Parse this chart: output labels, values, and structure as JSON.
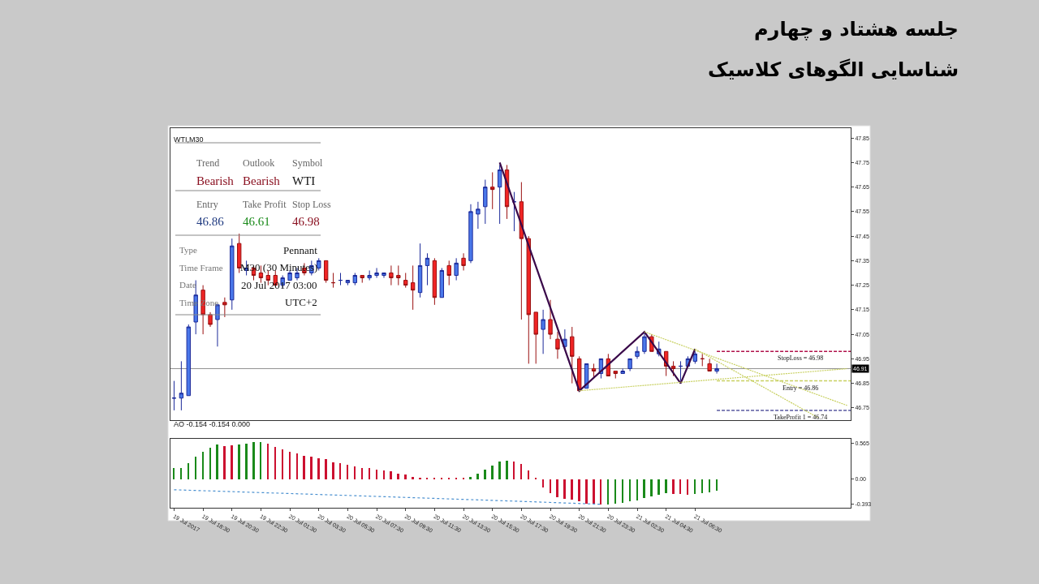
{
  "chart_data": [
    {
      "type": "candlestick",
      "title": "جلسه هشتاد و چهارم",
      "subtitle": "شناسایی الگوهای کلاسیک",
      "annotations": [
        "WTI,M30",
        "Trend",
        "Outlook",
        "Symbol",
        "Bearish",
        "Bearish",
        "WTI",
        "Entry",
        "Take Profit",
        "Stop Loss",
        "46.86",
        "46.61",
        "46.98",
        "Type",
        "Pennant",
        "Time Frame",
        "M30 (30 Minutes)",
        "Date",
        "20 Jul 2017 03:00",
        "Time Zone",
        "UTC+2"
      ],
      "ohlc": [
        [
          46.79,
          46.86,
          46.74,
          46.79
        ],
        [
          46.79,
          46.94,
          46.74,
          46.81
        ],
        [
          46.8,
          47.09,
          46.8,
          47.08
        ],
        [
          47.1,
          47.27,
          47.05,
          47.21
        ],
        [
          47.23,
          47.25,
          47.05,
          47.13
        ],
        [
          47.13,
          47.14,
          47.08,
          47.09
        ],
        [
          47.11,
          47.17,
          47.0,
          47.17
        ],
        [
          47.18,
          47.2,
          47.12,
          47.17
        ],
        [
          47.19,
          47.44,
          47.15,
          47.41
        ],
        [
          47.42,
          47.46,
          47.3,
          47.32
        ],
        [
          47.31,
          47.35,
          47.29,
          47.32
        ],
        [
          47.32,
          47.33,
          47.27,
          47.29
        ],
        [
          47.3,
          47.33,
          47.26,
          47.28
        ],
        [
          47.29,
          47.31,
          47.25,
          47.27
        ],
        [
          47.29,
          47.31,
          47.25,
          47.25
        ],
        [
          47.25,
          47.29,
          47.24,
          47.28
        ],
        [
          47.27,
          47.31,
          47.27,
          47.3
        ],
        [
          47.28,
          47.32,
          47.27,
          47.3
        ],
        [
          47.32,
          47.34,
          47.29,
          47.3
        ],
        [
          47.3,
          47.35,
          47.29,
          47.33
        ],
        [
          47.32,
          47.36,
          47.31,
          47.35
        ],
        [
          47.35,
          47.35,
          47.26,
          47.27
        ],
        [
          47.26,
          47.3,
          47.24,
          47.26
        ],
        [
          47.27,
          47.3,
          47.25,
          47.27
        ],
        [
          47.26,
          47.27,
          47.25,
          47.27
        ],
        [
          47.26,
          47.3,
          47.25,
          47.29
        ],
        [
          47.29,
          47.29,
          47.26,
          47.28
        ],
        [
          47.28,
          47.31,
          47.27,
          47.29
        ],
        [
          47.29,
          47.32,
          47.28,
          47.3
        ],
        [
          47.29,
          47.3,
          47.28,
          47.3
        ],
        [
          47.3,
          47.33,
          47.25,
          47.28
        ],
        [
          47.29,
          47.33,
          47.25,
          47.28
        ],
        [
          47.27,
          47.3,
          47.24,
          47.25
        ],
        [
          47.26,
          47.33,
          47.15,
          47.23
        ],
        [
          47.22,
          47.42,
          47.2,
          47.33
        ],
        [
          47.33,
          47.38,
          47.25,
          47.36
        ],
        [
          47.35,
          47.36,
          47.17,
          47.2
        ],
        [
          47.2,
          47.32,
          47.2,
          47.31
        ],
        [
          47.33,
          47.35,
          47.25,
          47.29
        ],
        [
          47.29,
          47.36,
          47.27,
          47.34
        ],
        [
          47.36,
          47.38,
          47.31,
          47.33
        ],
        [
          47.35,
          47.58,
          47.34,
          47.55
        ],
        [
          47.54,
          47.59,
          47.48,
          47.56
        ],
        [
          47.57,
          47.68,
          47.5,
          47.65
        ],
        [
          47.65,
          47.71,
          47.56,
          47.64
        ],
        [
          47.65,
          47.74,
          47.5,
          47.72
        ],
        [
          47.72,
          47.74,
          47.52,
          47.57
        ],
        [
          47.59,
          47.63,
          47.47,
          47.59
        ],
        [
          47.59,
          47.67,
          47.11,
          47.44
        ],
        [
          47.44,
          47.45,
          46.93,
          47.13
        ],
        [
          47.14,
          47.14,
          46.93,
          47.05
        ],
        [
          47.07,
          47.15,
          46.97,
          47.11
        ],
        [
          47.11,
          47.19,
          47.03,
          47.05
        ],
        [
          47.03,
          47.06,
          46.95,
          46.99
        ],
        [
          47.0,
          47.07,
          46.99,
          47.03
        ],
        [
          47.04,
          47.08,
          46.85,
          46.96
        ],
        [
          46.95,
          46.96,
          46.82,
          46.82
        ],
        [
          46.83,
          46.93,
          46.83,
          46.93
        ],
        [
          46.91,
          46.93,
          46.87,
          46.9
        ],
        [
          46.89,
          46.95,
          46.87,
          46.95
        ],
        [
          46.95,
          46.97,
          46.88,
          46.88
        ],
        [
          46.9,
          46.9,
          46.87,
          46.89
        ],
        [
          46.89,
          46.91,
          46.89,
          46.9
        ],
        [
          46.91,
          46.95,
          46.9,
          46.95
        ],
        [
          46.96,
          47.0,
          46.95,
          46.98
        ],
        [
          46.98,
          47.06,
          46.97,
          47.04
        ],
        [
          47.04,
          47.05,
          46.98,
          46.98
        ],
        [
          46.97,
          47.02,
          46.96,
          46.99
        ],
        [
          46.98,
          46.98,
          46.88,
          46.92
        ],
        [
          46.92,
          46.94,
          46.88,
          46.91
        ],
        [
          46.92,
          46.94,
          46.86,
          46.92
        ],
        [
          46.92,
          46.96,
          46.92,
          46.95
        ],
        [
          46.94,
          46.98,
          46.93,
          46.97
        ],
        [
          46.95,
          46.97,
          46.92,
          46.95
        ],
        [
          46.93,
          46.95,
          46.9,
          46.9
        ],
        [
          46.9,
          46.93,
          46.89,
          46.91
        ],
        null,
        null,
        null,
        null,
        null,
        null,
        null,
        null,
        null,
        null,
        null,
        null,
        null,
        null,
        null,
        null,
        null,
        null
      ],
      "series": [
        {
          "type": "line",
          "color": "#3a0a4a",
          "line_style": "solid",
          "values": [
            null,
            null,
            null,
            null,
            null,
            null,
            null,
            null,
            null,
            null,
            null,
            null,
            null,
            null,
            null,
            null,
            null,
            null,
            null,
            null,
            null,
            null,
            null,
            null,
            null,
            null,
            null,
            null,
            null,
            null,
            null,
            null,
            null,
            null,
            null,
            null,
            null,
            null,
            null,
            null,
            null,
            null,
            null,
            null,
            null,
            47.75,
            null,
            null,
            null,
            null,
            null,
            null,
            null,
            null,
            null,
            null,
            46.82,
            null,
            null,
            null,
            null,
            null,
            null,
            null,
            null,
            47.06,
            null,
            null,
            null,
            null,
            46.85,
            null,
            46.99,
            null,
            null,
            null,
            null,
            null,
            null,
            null,
            null,
            null,
            null,
            null,
            null,
            null,
            null,
            null,
            null,
            null,
            null,
            null,
            null,
            null
          ]
        },
        {
          "type": "line",
          "color": "#c8d060",
          "line_style": "dashed",
          "values": [
            null,
            null,
            null,
            null,
            null,
            null,
            null,
            null,
            null,
            null,
            null,
            null,
            null,
            null,
            null,
            null,
            null,
            null,
            null,
            null,
            null,
            null,
            null,
            null,
            null,
            null,
            null,
            null,
            null,
            null,
            null,
            null,
            null,
            null,
            null,
            null,
            null,
            null,
            null,
            null,
            null,
            null,
            null,
            null,
            null,
            null,
            null,
            null,
            null,
            null,
            null,
            null,
            null,
            null,
            null,
            null,
            null,
            null,
            null,
            null,
            null,
            null,
            null,
            null,
            null,
            47.06,
            null,
            null,
            null,
            null,
            null,
            null,
            null,
            null,
            null,
            null,
            null,
            null,
            null,
            null,
            null,
            null,
            null,
            null,
            null,
            null,
            null,
            null,
            null,
            null,
            null,
            null,
            null,
            46.76
          ]
        },
        {
          "type": "line",
          "color": "#c8d060",
          "line_style": "dashed",
          "values": [
            null,
            null,
            null,
            null,
            null,
            null,
            null,
            null,
            null,
            null,
            null,
            null,
            null,
            null,
            null,
            null,
            null,
            null,
            null,
            null,
            null,
            null,
            null,
            null,
            null,
            null,
            null,
            null,
            null,
            null,
            null,
            null,
            null,
            null,
            null,
            null,
            null,
            null,
            null,
            null,
            null,
            null,
            null,
            null,
            null,
            null,
            null,
            null,
            null,
            null,
            null,
            null,
            null,
            null,
            null,
            null,
            null,
            null,
            null,
            null,
            null,
            null,
            null,
            null,
            null,
            null,
            null,
            null,
            null,
            null,
            null,
            null,
            46.99,
            null,
            null,
            null,
            null,
            null,
            null,
            null,
            null,
            null,
            null,
            null,
            null,
            null,
            null,
            null,
            null,
            46.71,
            null,
            null,
            null,
            null
          ]
        },
        {
          "type": "line",
          "color": "#c8d060",
          "line_style": "dashed",
          "values": [
            null,
            null,
            null,
            null,
            null,
            null,
            null,
            null,
            null,
            null,
            null,
            null,
            null,
            null,
            null,
            null,
            null,
            null,
            null,
            null,
            null,
            null,
            null,
            null,
            null,
            null,
            null,
            null,
            null,
            null,
            null,
            null,
            null,
            null,
            null,
            null,
            null,
            null,
            null,
            null,
            null,
            null,
            null,
            null,
            null,
            null,
            null,
            null,
            null,
            null,
            null,
            null,
            null,
            null,
            null,
            null,
            46.82,
            null,
            null,
            null,
            null,
            null,
            null,
            null,
            null,
            null,
            null,
            null,
            null,
            null,
            null,
            null,
            null,
            null,
            null,
            null,
            null,
            null,
            null,
            null,
            null,
            null,
            null,
            null,
            null,
            null,
            null,
            null,
            null,
            null,
            null,
            null,
            null,
            46.91
          ]
        }
      ],
      "ylim": [
        46.7,
        47.89
      ],
      "yticks": [
        46.75,
        46.85,
        46.95,
        47.05,
        47.15,
        47.25,
        47.35,
        47.45,
        47.55,
        47.65,
        47.75,
        47.85
      ],
      "ref_lines": [
        {
          "axis": "y",
          "value": 46.98,
          "label": "StopLoss = 46.98",
          "color": "#b0104a",
          "line_style": "dashed"
        },
        {
          "axis": "y",
          "value": 46.86,
          "label": "Entry = 46.86",
          "color": "#c8d060",
          "line_style": "dashed"
        },
        {
          "axis": "y",
          "value": 46.74,
          "label": "TakeProfit 1 = 46.74",
          "color": "#5a5aa0",
          "line_style": "dashed"
        },
        {
          "axis": "y",
          "value": 46.91,
          "label": "46.91",
          "color": "#909090",
          "line_style": "solid"
        }
      ],
      "tick_labels": "y",
      "grid": false
    },
    {
      "type": "bar",
      "title": "AO -0.154 -0.154 0.000",
      "categories": [
        "19 Jul 2017",
        null,
        null,
        null,
        "19 Jul 18:30",
        null,
        null,
        null,
        "19 Jul 20:30",
        null,
        null,
        null,
        "19 Jul 22:30",
        null,
        null,
        null,
        "20 Jul 01:30",
        null,
        null,
        null,
        "20 Jul 03:30",
        null,
        null,
        null,
        "20 Jul 05:30",
        null,
        null,
        null,
        "20 Jul 07:30",
        null,
        null,
        null,
        "20 Jul 09:30",
        null,
        null,
        null,
        "20 Jul 11:30",
        null,
        null,
        null,
        "20 Jul 13:30",
        null,
        null,
        null,
        "20 Jul 15:30",
        null,
        null,
        null,
        "20 Jul 17:30",
        null,
        null,
        null,
        "20 Jul 19:30",
        null,
        null,
        null,
        "20 Jul 21:30",
        null,
        null,
        null,
        "20 Jul 23:30",
        null,
        null,
        null,
        "21 Jul 02:30",
        null,
        null,
        null,
        "21 Jul 04:30",
        null,
        null,
        null,
        "21 Jul 06:30",
        null,
        null,
        null,
        null,
        null,
        null,
        null,
        null,
        null,
        null,
        null,
        null,
        null,
        null,
        null,
        null,
        null,
        null,
        null,
        null,
        null
      ],
      "values": [
        0.17,
        0.17,
        0.25,
        0.35,
        0.43,
        0.5,
        0.54,
        0.52,
        0.53,
        0.54,
        0.56,
        0.58,
        0.58,
        0.56,
        0.51,
        0.47,
        0.43,
        0.4,
        0.37,
        0.35,
        0.33,
        0.31,
        0.27,
        0.25,
        0.22,
        0.2,
        0.17,
        0.17,
        0.15,
        0.13,
        0.12,
        0.09,
        0.07,
        0.03,
        0.02,
        0.01,
        0.01,
        0.01,
        0.01,
        0.01,
        0.02,
        0.03,
        0.09,
        0.15,
        0.21,
        0.28,
        0.29,
        0.28,
        0.24,
        0.13,
        0.01,
        -0.13,
        -0.22,
        -0.29,
        -0.31,
        -0.33,
        -0.35,
        -0.39,
        -0.39,
        -0.41,
        -0.41,
        -0.39,
        -0.38,
        -0.35,
        -0.34,
        -0.3,
        -0.27,
        -0.25,
        -0.23,
        -0.24,
        -0.24,
        -0.25,
        -0.24,
        -0.22,
        -0.21,
        -0.19,
        null,
        null,
        null,
        null,
        null,
        null,
        null,
        null,
        null,
        null,
        null,
        null,
        null,
        null,
        null,
        null,
        null,
        null
      ],
      "colors": [
        "#1a8a1a",
        "#1a8a1a",
        "#1a8a1a",
        "#1a8a1a",
        "#1a8a1a",
        "#1a8a1a",
        "#1a8a1a",
        "#cc1030",
        "#cc1030",
        "#1a8a1a",
        "#1a8a1a",
        "#1a8a1a",
        "#1a8a1a",
        "#cc1030",
        "#cc1030",
        "#cc1030",
        "#cc1030",
        "#cc1030",
        "#cc1030",
        "#cc1030",
        "#cc1030",
        "#cc1030",
        "#cc1030",
        "#cc1030",
        "#cc1030",
        "#cc1030",
        "#cc1030",
        "#cc1030",
        "#cc1030",
        "#cc1030",
        "#cc1030",
        "#cc1030",
        "#cc1030",
        "#cc1030",
        "#cc1030",
        "#cc1030",
        "#cc1030",
        "#cc1030",
        "#cc1030",
        "#cc1030",
        "#cc1030",
        "#1a8a1a",
        "#1a8a1a",
        "#1a8a1a",
        "#1a8a1a",
        "#1a8a1a",
        "#1a8a1a",
        "#cc1030",
        "#cc1030",
        "#cc1030",
        "#cc1030",
        "#cc1030",
        "#cc1030",
        "#cc1030",
        "#cc1030",
        "#cc1030",
        "#cc1030",
        "#cc1030",
        "#cc1030",
        "#cc1030",
        "#1a8a1a",
        "#1a8a1a",
        "#1a8a1a",
        "#1a8a1a",
        "#1a8a1a",
        "#1a8a1a",
        "#1a8a1a",
        "#1a8a1a",
        "#1a8a1a",
        "#cc1030",
        "#cc1030",
        "#cc1030",
        "#1a8a1a",
        "#1a8a1a",
        "#1a8a1a",
        "#1a8a1a",
        "#1a8a1a",
        "#1a8a1a",
        "#1a8a1a",
        "#1a8a1a",
        "#1a8a1a",
        "#1a8a1a",
        "#1a8a1a",
        "#1a8a1a",
        "#1a8a1a",
        "#1a8a1a",
        "#1a8a1a",
        "#1a8a1a",
        "#1a8a1a",
        "#1a8a1a",
        "#1a8a1a",
        "#1a8a1a",
        "#1a8a1a",
        "#1a8a1a"
      ],
      "series": [
        {
          "type": "line",
          "color": "#4a90d0",
          "line_style": "dotted",
          "values": [
            -0.17,
            null,
            null,
            null,
            null,
            null,
            null,
            null,
            null,
            null,
            null,
            null,
            null,
            null,
            null,
            null,
            null,
            null,
            null,
            null,
            null,
            null,
            null,
            null,
            -0.26,
            null,
            null,
            null,
            null,
            null,
            null,
            null,
            null,
            null,
            null,
            null,
            null,
            null,
            null,
            null,
            null,
            null,
            null,
            null,
            null,
            null,
            null,
            -0.35,
            null,
            null,
            null,
            null,
            null,
            null,
            null,
            null,
            null,
            null,
            null,
            -0.4,
            null,
            null,
            null,
            null,
            null,
            null,
            null,
            null,
            null,
            null,
            null,
            null,
            null,
            null,
            null,
            null,
            null,
            null,
            null,
            null,
            null,
            null,
            null,
            null,
            null,
            null,
            null,
            null,
            null,
            null,
            null,
            null,
            null,
            null
          ]
        }
      ],
      "ylim": [
        -0.455,
        0.636
      ],
      "yticks": [
        0.565,
        {
          "value": 0,
          "label": "0.00"
        },
        -0.393
      ],
      "grid": false
    }
  ]
}
